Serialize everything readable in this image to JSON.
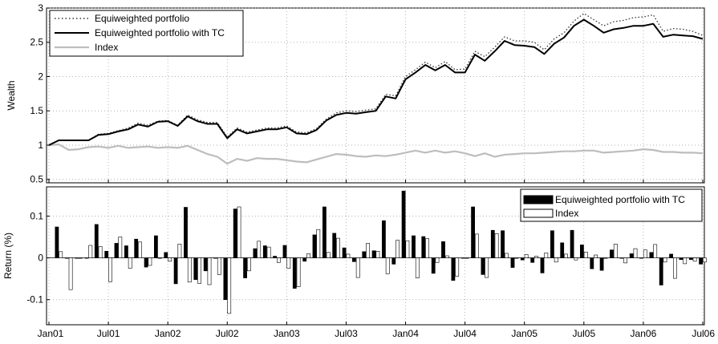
{
  "chart_data": [
    {
      "type": "line",
      "ylabel": "Wealth",
      "ylim": [
        0.45,
        3.0
      ],
      "yticks": [
        "0.5",
        "1",
        "1.5",
        "2",
        "2.5",
        "3"
      ],
      "grid": true,
      "legend_position": "top-left",
      "x_ticks": [
        "Jan01",
        "Jul01",
        "Jan02",
        "Jul02",
        "Jan03",
        "Jul03",
        "Jan04",
        "Jul04",
        "Jan05",
        "Jul05",
        "Jan06",
        "Jul06"
      ],
      "months": [
        "Jan01",
        "Feb01",
        "Mar01",
        "Apr01",
        "May01",
        "Jun01",
        "Jul01",
        "Aug01",
        "Sep01",
        "Oct01",
        "Nov01",
        "Dec01",
        "Jan02",
        "Feb02",
        "Mar02",
        "Apr02",
        "May02",
        "Jun02",
        "Jul02",
        "Aug02",
        "Sep02",
        "Oct02",
        "Nov02",
        "Dec02",
        "Jan03",
        "Feb03",
        "Mar03",
        "Apr03",
        "May03",
        "Jun03",
        "Jul03",
        "Aug03",
        "Sep03",
        "Oct03",
        "Nov03",
        "Dec03",
        "Jan04",
        "Feb04",
        "Mar04",
        "Apr04",
        "May04",
        "Jun04",
        "Jul04",
        "Aug04",
        "Sep04",
        "Oct04",
        "Nov04",
        "Dec04",
        "Jan05",
        "Feb05",
        "Mar05",
        "Apr05",
        "May05",
        "Jun05",
        "Jul05",
        "Aug05",
        "Sep05",
        "Oct05",
        "Nov05",
        "Dec05",
        "Jan06",
        "Feb06",
        "Mar06",
        "Apr06",
        "May06",
        "Jun06",
        "Jul06"
      ],
      "series": [
        {
          "name": "Equiweighted portfolio",
          "style": "dotted",
          "color": "#333333",
          "values": [
            1.0,
            1.07,
            1.07,
            1.07,
            1.07,
            1.16,
            1.17,
            1.21,
            1.25,
            1.32,
            1.29,
            1.35,
            1.36,
            1.29,
            1.44,
            1.37,
            1.33,
            1.33,
            1.12,
            1.25,
            1.19,
            1.22,
            1.25,
            1.25,
            1.28,
            1.19,
            1.18,
            1.24,
            1.38,
            1.47,
            1.5,
            1.49,
            1.51,
            1.53,
            1.74,
            1.72,
            2.0,
            2.1,
            2.21,
            2.13,
            2.22,
            2.1,
            2.11,
            2.37,
            2.29,
            2.43,
            2.58,
            2.52,
            2.52,
            2.5,
            2.39,
            2.55,
            2.64,
            2.81,
            2.92,
            2.83,
            2.74,
            2.8,
            2.82,
            2.86,
            2.87,
            2.9,
            2.66,
            2.7,
            2.69,
            2.66,
            2.6
          ]
        },
        {
          "name": "Equiweighted portfolio with TC",
          "style": "solid",
          "color": "#000000",
          "values": [
            1.0,
            1.07,
            1.07,
            1.07,
            1.07,
            1.15,
            1.16,
            1.2,
            1.23,
            1.3,
            1.27,
            1.34,
            1.35,
            1.28,
            1.42,
            1.35,
            1.31,
            1.31,
            1.1,
            1.23,
            1.17,
            1.2,
            1.23,
            1.23,
            1.26,
            1.17,
            1.16,
            1.22,
            1.36,
            1.44,
            1.47,
            1.46,
            1.48,
            1.5,
            1.71,
            1.68,
            1.96,
            2.06,
            2.17,
            2.09,
            2.17,
            2.06,
            2.06,
            2.32,
            2.23,
            2.37,
            2.52,
            2.46,
            2.45,
            2.43,
            2.33,
            2.48,
            2.57,
            2.74,
            2.83,
            2.74,
            2.64,
            2.69,
            2.71,
            2.74,
            2.74,
            2.77,
            2.58,
            2.61,
            2.6,
            2.59,
            2.55
          ]
        },
        {
          "name": "Index",
          "style": "solid",
          "color": "#bdbdbd",
          "values": [
            1.0,
            1.01,
            0.93,
            0.94,
            0.97,
            0.98,
            0.96,
            0.99,
            0.96,
            0.97,
            0.98,
            0.96,
            0.97,
            0.96,
            0.99,
            0.93,
            0.87,
            0.83,
            0.73,
            0.8,
            0.77,
            0.81,
            0.8,
            0.8,
            0.78,
            0.76,
            0.75,
            0.79,
            0.83,
            0.87,
            0.86,
            0.84,
            0.83,
            0.85,
            0.84,
            0.86,
            0.89,
            0.92,
            0.89,
            0.92,
            0.89,
            0.91,
            0.88,
            0.84,
            0.88,
            0.83,
            0.86,
            0.87,
            0.88,
            0.88,
            0.89,
            0.9,
            0.91,
            0.91,
            0.92,
            0.92,
            0.89,
            0.9,
            0.91,
            0.92,
            0.94,
            0.93,
            0.9,
            0.9,
            0.89,
            0.89,
            0.88
          ]
        }
      ]
    },
    {
      "type": "bar",
      "ylabel": "Return (%)",
      "ylim": [
        -0.16,
        0.17
      ],
      "yticks": [
        "-0.1",
        "0",
        "0.1"
      ],
      "grid": true,
      "legend_position": "top-right",
      "x_ticks": [
        "Jan01",
        "Jul01",
        "Jan02",
        "Jul02",
        "Jan03",
        "Jul03",
        "Jan04",
        "Jul04",
        "Jan05",
        "Jul05",
        "Jan06",
        "Jul06"
      ],
      "series": [
        {
          "name": "Equiweighted portfolio with TC",
          "color": "#000000",
          "values": [
            0.074,
            0.0,
            0.0,
            0.0,
            0.08,
            0.016,
            0.035,
            0.029,
            0.045,
            -0.022,
            0.053,
            0.013,
            -0.062,
            0.121,
            -0.052,
            -0.031,
            0.0,
            -0.1,
            0.117,
            -0.048,
            0.022,
            0.029,
            0.004,
            0.03,
            -0.073,
            -0.008,
            0.055,
            0.122,
            0.059,
            0.024,
            -0.009,
            0.015,
            0.017,
            0.089,
            -0.015,
            0.16,
            0.053,
            0.051,
            -0.037,
            0.039,
            -0.054,
            0.0,
            0.122,
            -0.04,
            0.066,
            0.065,
            -0.023,
            -0.005,
            -0.011,
            -0.036,
            0.065,
            0.036,
            0.066,
            0.031,
            -0.026,
            -0.03,
            0.019,
            0.0,
            0.01,
            0.0,
            0.013,
            -0.065,
            0.009,
            -0.004,
            -0.004,
            -0.015
          ]
        },
        {
          "name": "Index",
          "color": "#ffffff",
          "values": [
            0.015,
            -0.076,
            0.0,
            0.03,
            0.027,
            -0.057,
            0.05,
            -0.025,
            0.038,
            -0.018,
            0.0,
            -0.008,
            0.033,
            -0.058,
            -0.061,
            -0.064,
            -0.04,
            -0.133,
            0.122,
            -0.031,
            0.04,
            0.026,
            -0.011,
            -0.025,
            -0.069,
            0.01,
            0.068,
            0.013,
            0.047,
            0.009,
            -0.047,
            0.035,
            0.016,
            -0.038,
            0.042,
            0.041,
            -0.048,
            0.046,
            -0.011,
            0.005,
            -0.044,
            0.0,
            0.057,
            -0.047,
            0.058,
            0.011,
            0.0,
            0.008,
            0.004,
            0.012,
            -0.01,
            0.009,
            -0.005,
            0.014,
            0.007,
            0.0,
            0.033,
            -0.012,
            0.022,
            0.019,
            0.032,
            -0.01,
            -0.049,
            -0.014,
            -0.008,
            -0.01
          ]
        }
      ]
    }
  ]
}
